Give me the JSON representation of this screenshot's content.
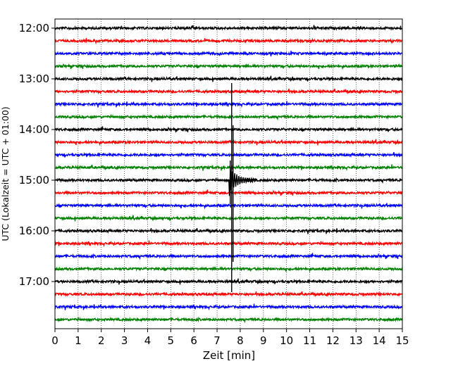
{
  "chart_data": {
    "type": "line",
    "title": "",
    "xlabel": "Zeit  [min]",
    "ylabel": "UTC (Lokalzeit = UTC + 01:00)",
    "xlim": [
      0,
      15
    ],
    "xticks": [
      0,
      1,
      2,
      3,
      4,
      5,
      6,
      7,
      8,
      9,
      10,
      11,
      12,
      13,
      14,
      15
    ],
    "yticks": [
      "12:00",
      "13:00",
      "14:00",
      "15:00",
      "16:00",
      "17:00"
    ],
    "grid": "vertical dotted",
    "trace_interval_minutes": 15,
    "trace_colors": [
      "#000000",
      "#ff0000",
      "#0000ff",
      "#008000"
    ],
    "traces": [
      {
        "start": "12:00",
        "color": "#000000"
      },
      {
        "start": "12:15",
        "color": "#ff0000"
      },
      {
        "start": "12:30",
        "color": "#0000ff"
      },
      {
        "start": "12:45",
        "color": "#008000"
      },
      {
        "start": "13:00",
        "color": "#000000"
      },
      {
        "start": "13:15",
        "color": "#ff0000"
      },
      {
        "start": "13:30",
        "color": "#0000ff"
      },
      {
        "start": "13:45",
        "color": "#008000"
      },
      {
        "start": "14:00",
        "color": "#000000"
      },
      {
        "start": "14:15",
        "color": "#ff0000"
      },
      {
        "start": "14:30",
        "color": "#0000ff"
      },
      {
        "start": "14:45",
        "color": "#008000"
      },
      {
        "start": "15:00",
        "color": "#000000"
      },
      {
        "start": "15:15",
        "color": "#ff0000"
      },
      {
        "start": "15:30",
        "color": "#0000ff"
      },
      {
        "start": "15:45",
        "color": "#008000"
      },
      {
        "start": "16:00",
        "color": "#000000"
      },
      {
        "start": "16:15",
        "color": "#ff0000"
      },
      {
        "start": "16:30",
        "color": "#0000ff"
      },
      {
        "start": "16:45",
        "color": "#008000"
      },
      {
        "start": "17:00",
        "color": "#000000"
      },
      {
        "start": "17:15",
        "color": "#ff0000"
      },
      {
        "start": "17:30",
        "color": "#0000ff"
      },
      {
        "start": "17:45",
        "color": "#008000"
      }
    ],
    "event": {
      "start": "15:00",
      "minute": 7.6
    }
  }
}
